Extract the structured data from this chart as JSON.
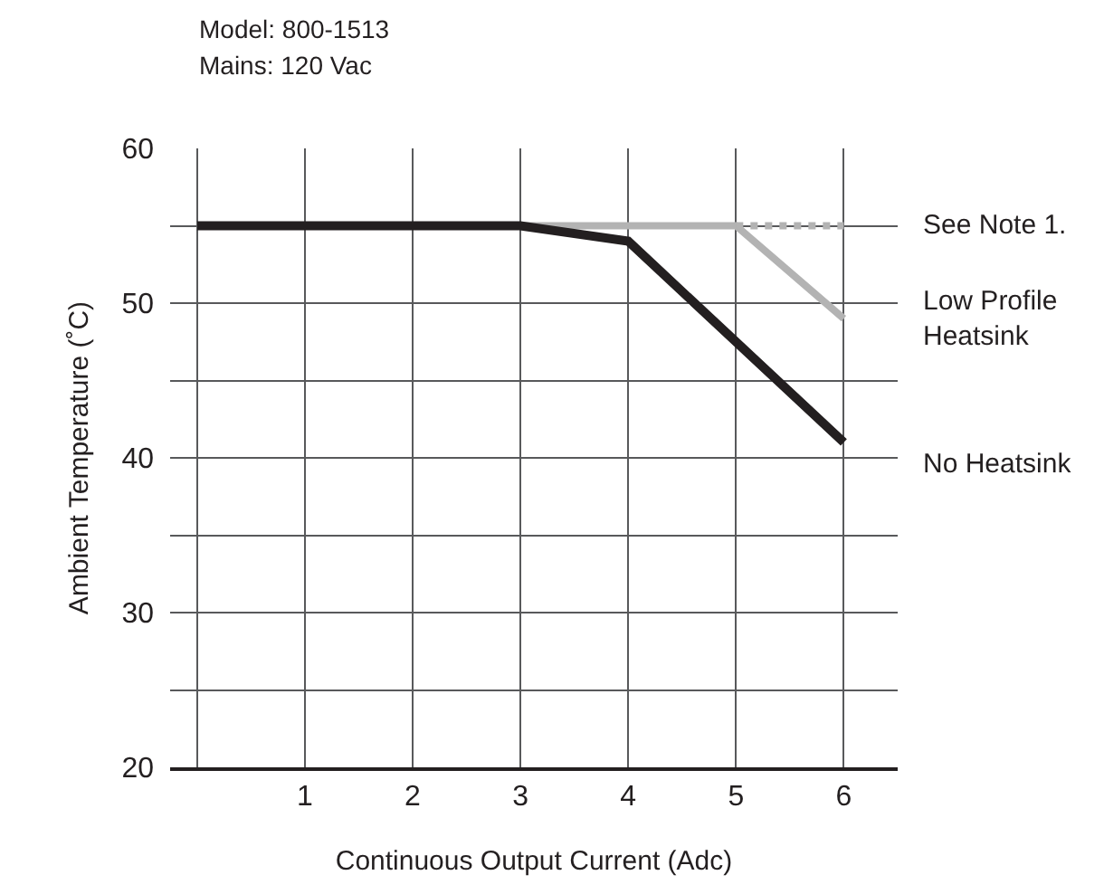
{
  "chart_data": {
    "type": "line",
    "xlabel": "Continuous Output Current (Adc)",
    "ylabel": "Ambient Temperature (˚C)",
    "annotations": [
      "Model: 800-1513",
      "Mains: 120 Vac"
    ],
    "series": [
      {
        "name": "Low Profile\nHeatsink",
        "color": "#b3b3b3",
        "x": [
          0,
          5,
          6
        ],
        "values": [
          55,
          55,
          49
        ]
      },
      {
        "name": "See Note 1.",
        "color": "#b3b3b3",
        "x": [
          5,
          6
        ],
        "values": [
          55,
          55
        ],
        "line_style": "dotted"
      },
      {
        "name": "No Heatsink",
        "color": "#231f20",
        "x": [
          0,
          3,
          4,
          6
        ],
        "values": [
          55,
          55,
          54,
          41
        ]
      }
    ],
    "xlim": [
      -0.25,
      6.5
    ],
    "ylim": [
      20,
      60
    ],
    "xticks": [
      {
        "value": 0,
        "label": null
      },
      1,
      2,
      3,
      4,
      5,
      6
    ],
    "yticks": [
      20,
      {
        "value": 25,
        "label": null
      },
      30,
      {
        "value": 35,
        "label": null
      },
      40,
      {
        "value": 45,
        "label": null
      },
      50,
      {
        "value": 55,
        "label": null
      },
      60
    ],
    "grid": true,
    "legend": false,
    "marker": "none",
    "line_style": "solid"
  }
}
